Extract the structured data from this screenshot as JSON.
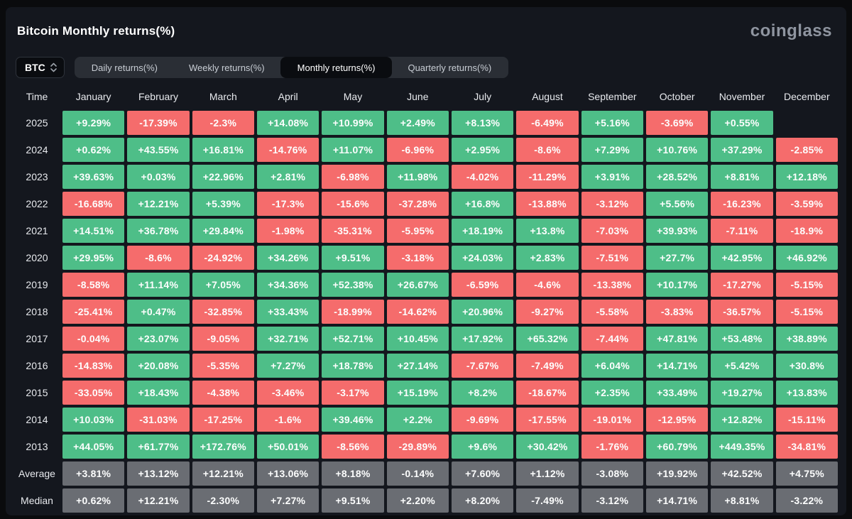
{
  "header": {
    "title": "Bitcoin Monthly returns(%)",
    "logo": "coinglass"
  },
  "controls": {
    "coin_selector": {
      "value": "BTC"
    },
    "tabs": [
      {
        "label": "Daily returns(%)",
        "active": false
      },
      {
        "label": "Weekly returns(%)",
        "active": false
      },
      {
        "label": "Monthly returns(%)",
        "active": true
      },
      {
        "label": "Quarterly returns(%)",
        "active": false
      }
    ]
  },
  "colors": {
    "positive": "#4ebe88",
    "negative": "#f56c6c",
    "summary": "#6a6d73",
    "panel": "#14171e",
    "page": "#0a0b0d"
  },
  "table": {
    "corner_label": "Time",
    "months": [
      "January",
      "February",
      "March",
      "April",
      "May",
      "June",
      "July",
      "August",
      "September",
      "October",
      "November",
      "December"
    ],
    "rows": [
      {
        "label": "2025",
        "type": "year",
        "cells": [
          "+9.29%",
          "-17.39%",
          "-2.3%",
          "+14.08%",
          "+10.99%",
          "+2.49%",
          "+8.13%",
          "-6.49%",
          "+5.16%",
          "-3.69%",
          "+0.55%",
          null
        ]
      },
      {
        "label": "2024",
        "type": "year",
        "cells": [
          "+0.62%",
          "+43.55%",
          "+16.81%",
          "-14.76%",
          "+11.07%",
          "-6.96%",
          "+2.95%",
          "-8.6%",
          "+7.29%",
          "+10.76%",
          "+37.29%",
          "-2.85%"
        ]
      },
      {
        "label": "2023",
        "type": "year",
        "cells": [
          "+39.63%",
          "+0.03%",
          "+22.96%",
          "+2.81%",
          "-6.98%",
          "+11.98%",
          "-4.02%",
          "-11.29%",
          "+3.91%",
          "+28.52%",
          "+8.81%",
          "+12.18%"
        ]
      },
      {
        "label": "2022",
        "type": "year",
        "cells": [
          "-16.68%",
          "+12.21%",
          "+5.39%",
          "-17.3%",
          "-15.6%",
          "-37.28%",
          "+16.8%",
          "-13.88%",
          "-3.12%",
          "+5.56%",
          "-16.23%",
          "-3.59%"
        ]
      },
      {
        "label": "2021",
        "type": "year",
        "cells": [
          "+14.51%",
          "+36.78%",
          "+29.84%",
          "-1.98%",
          "-35.31%",
          "-5.95%",
          "+18.19%",
          "+13.8%",
          "-7.03%",
          "+39.93%",
          "-7.11%",
          "-18.9%"
        ]
      },
      {
        "label": "2020",
        "type": "year",
        "cells": [
          "+29.95%",
          "-8.6%",
          "-24.92%",
          "+34.26%",
          "+9.51%",
          "-3.18%",
          "+24.03%",
          "+2.83%",
          "-7.51%",
          "+27.7%",
          "+42.95%",
          "+46.92%"
        ]
      },
      {
        "label": "2019",
        "type": "year",
        "cells": [
          "-8.58%",
          "+11.14%",
          "+7.05%",
          "+34.36%",
          "+52.38%",
          "+26.67%",
          "-6.59%",
          "-4.6%",
          "-13.38%",
          "+10.17%",
          "-17.27%",
          "-5.15%"
        ]
      },
      {
        "label": "2018",
        "type": "year",
        "cells": [
          "-25.41%",
          "+0.47%",
          "-32.85%",
          "+33.43%",
          "-18.99%",
          "-14.62%",
          "+20.96%",
          "-9.27%",
          "-5.58%",
          "-3.83%",
          "-36.57%",
          "-5.15%"
        ]
      },
      {
        "label": "2017",
        "type": "year",
        "cells": [
          "-0.04%",
          "+23.07%",
          "-9.05%",
          "+32.71%",
          "+52.71%",
          "+10.45%",
          "+17.92%",
          "+65.32%",
          "-7.44%",
          "+47.81%",
          "+53.48%",
          "+38.89%"
        ]
      },
      {
        "label": "2016",
        "type": "year",
        "cells": [
          "-14.83%",
          "+20.08%",
          "-5.35%",
          "+7.27%",
          "+18.78%",
          "+27.14%",
          "-7.67%",
          "-7.49%",
          "+6.04%",
          "+14.71%",
          "+5.42%",
          "+30.8%"
        ]
      },
      {
        "label": "2015",
        "type": "year",
        "cells": [
          "-33.05%",
          "+18.43%",
          "-4.38%",
          "-3.46%",
          "-3.17%",
          "+15.19%",
          "+8.2%",
          "-18.67%",
          "+2.35%",
          "+33.49%",
          "+19.27%",
          "+13.83%"
        ]
      },
      {
        "label": "2014",
        "type": "year",
        "cells": [
          "+10.03%",
          "-31.03%",
          "-17.25%",
          "-1.6%",
          "+39.46%",
          "+2.2%",
          "-9.69%",
          "-17.55%",
          "-19.01%",
          "-12.95%",
          "+12.82%",
          "-15.11%"
        ]
      },
      {
        "label": "2013",
        "type": "year",
        "cells": [
          "+44.05%",
          "+61.77%",
          "+172.76%",
          "+50.01%",
          "-8.56%",
          "-29.89%",
          "+9.6%",
          "+30.42%",
          "-1.76%",
          "+60.79%",
          "+449.35%",
          "-34.81%"
        ]
      },
      {
        "label": "Average",
        "type": "summary",
        "cells": [
          "+3.81%",
          "+13.12%",
          "+12.21%",
          "+13.06%",
          "+8.18%",
          "-0.14%",
          "+7.60%",
          "+1.12%",
          "-3.08%",
          "+19.92%",
          "+42.52%",
          "+4.75%"
        ]
      },
      {
        "label": "Median",
        "type": "summary",
        "cells": [
          "+0.62%",
          "+12.21%",
          "-2.30%",
          "+7.27%",
          "+9.51%",
          "+2.20%",
          "+8.20%",
          "-7.49%",
          "-3.12%",
          "+14.71%",
          "+8.81%",
          "-3.22%"
        ]
      }
    ]
  }
}
